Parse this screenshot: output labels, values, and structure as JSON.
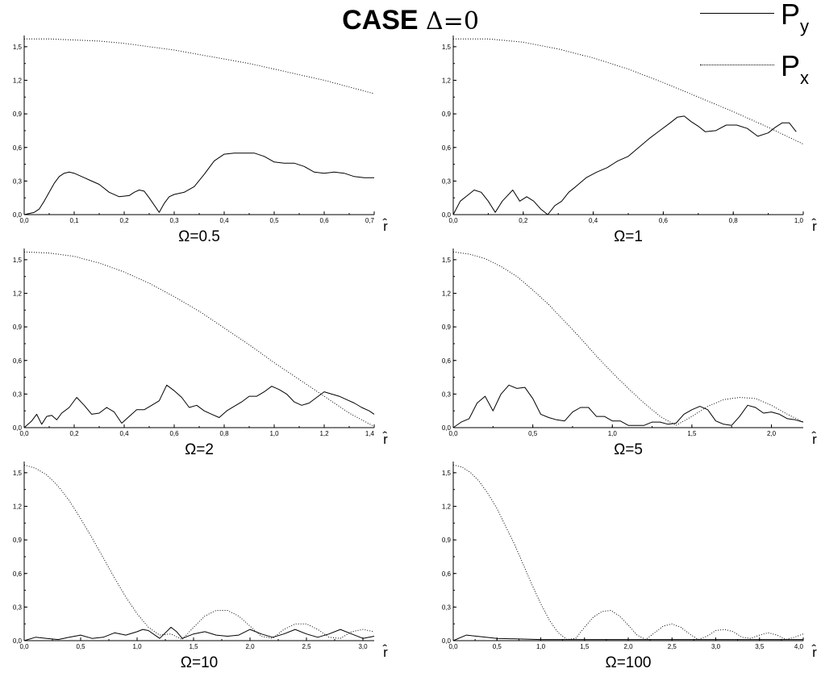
{
  "title": {
    "main": "CASE",
    "delta": "Δ=0"
  },
  "legend": [
    {
      "label": "P",
      "sub": "y",
      "style": "solid"
    },
    {
      "label": "P",
      "sub": "x",
      "style": "dotted"
    }
  ],
  "chart_data": [
    {
      "type": "line",
      "caption": "Ω=0.5",
      "xlabel": "r̂",
      "xlim": [
        0,
        0.7
      ],
      "ylim": [
        0,
        1.6
      ],
      "xticks": [
        0,
        0.1,
        0.2,
        0.3,
        0.4,
        0.5,
        0.6,
        0.7
      ],
      "xtick_labels": [
        "0,0",
        "0,1",
        "0,2",
        "0,3",
        "0,4",
        "0,5",
        "0,6",
        "0,7"
      ],
      "yticks": [
        0,
        0.3,
        0.6,
        0.9,
        1.2,
        1.5
      ],
      "ytick_labels": [
        "0,0",
        "0,3",
        "0,6",
        "0,9",
        "1,2",
        "1,5"
      ],
      "series": [
        {
          "style": "solid",
          "x": [
            0,
            0.02,
            0.03,
            0.04,
            0.05,
            0.06,
            0.07,
            0.08,
            0.09,
            0.1,
            0.11,
            0.12,
            0.13,
            0.15,
            0.17,
            0.19,
            0.21,
            0.22,
            0.23,
            0.24,
            0.25,
            0.27,
            0.28,
            0.29,
            0.3,
            0.32,
            0.34,
            0.36,
            0.38,
            0.4,
            0.42,
            0.44,
            0.46,
            0.48,
            0.5,
            0.52,
            0.54,
            0.56,
            0.58,
            0.6,
            0.62,
            0.64,
            0.66,
            0.68,
            0.7
          ],
          "y": [
            0,
            0.02,
            0.05,
            0.12,
            0.2,
            0.28,
            0.34,
            0.37,
            0.38,
            0.37,
            0.35,
            0.33,
            0.31,
            0.27,
            0.2,
            0.16,
            0.17,
            0.2,
            0.22,
            0.21,
            0.15,
            0.02,
            0.1,
            0.16,
            0.18,
            0.2,
            0.25,
            0.36,
            0.48,
            0.54,
            0.55,
            0.55,
            0.55,
            0.52,
            0.47,
            0.46,
            0.46,
            0.43,
            0.38,
            0.37,
            0.38,
            0.37,
            0.34,
            0.33,
            0.33
          ]
        },
        {
          "style": "dotted",
          "x": [
            0,
            0.05,
            0.1,
            0.15,
            0.2,
            0.25,
            0.3,
            0.35,
            0.4,
            0.45,
            0.5,
            0.55,
            0.6,
            0.65,
            0.7
          ],
          "y": [
            1.57,
            1.57,
            1.56,
            1.55,
            1.53,
            1.5,
            1.47,
            1.43,
            1.39,
            1.35,
            1.3,
            1.25,
            1.2,
            1.14,
            1.08
          ]
        }
      ]
    },
    {
      "type": "line",
      "caption": "Ω=1",
      "xlabel": "r̂",
      "xlim": [
        0,
        1.0
      ],
      "ylim": [
        0,
        1.6
      ],
      "xticks": [
        0,
        0.2,
        0.4,
        0.6,
        0.8,
        1.0
      ],
      "xtick_labels": [
        "0,0",
        "0,2",
        "0,4",
        "0,6",
        "0,8",
        "1,0"
      ],
      "yticks": [
        0,
        0.3,
        0.6,
        0.9,
        1.2,
        1.5
      ],
      "ytick_labels": [
        "0,0",
        "0,3",
        "0,6",
        "0,9",
        "1,2",
        "1,5"
      ],
      "series": [
        {
          "style": "solid",
          "x": [
            0,
            0.02,
            0.04,
            0.06,
            0.08,
            0.1,
            0.12,
            0.14,
            0.17,
            0.19,
            0.21,
            0.23,
            0.25,
            0.27,
            0.29,
            0.31,
            0.33,
            0.35,
            0.38,
            0.41,
            0.44,
            0.47,
            0.5,
            0.53,
            0.56,
            0.59,
            0.62,
            0.64,
            0.66,
            0.68,
            0.7,
            0.72,
            0.75,
            0.78,
            0.81,
            0.84,
            0.87,
            0.9,
            0.92,
            0.94,
            0.96,
            0.98
          ],
          "y": [
            0,
            0.12,
            0.17,
            0.22,
            0.2,
            0.12,
            0.02,
            0.12,
            0.22,
            0.12,
            0.16,
            0.12,
            0.05,
            0,
            0.08,
            0.12,
            0.2,
            0.25,
            0.33,
            0.38,
            0.42,
            0.48,
            0.52,
            0.6,
            0.68,
            0.75,
            0.82,
            0.87,
            0.88,
            0.83,
            0.79,
            0.74,
            0.75,
            0.8,
            0.8,
            0.77,
            0.7,
            0.73,
            0.78,
            0.82,
            0.82,
            0.74
          ]
        },
        {
          "style": "dotted",
          "x": [
            0,
            0.1,
            0.2,
            0.3,
            0.4,
            0.5,
            0.6,
            0.7,
            0.8,
            0.9,
            1.0
          ],
          "y": [
            1.57,
            1.57,
            1.54,
            1.48,
            1.4,
            1.3,
            1.18,
            1.05,
            0.92,
            0.78,
            0.63
          ]
        }
      ]
    },
    {
      "type": "line",
      "caption": "Ω=2",
      "xlabel": "r̂",
      "xlim": [
        0,
        1.4
      ],
      "ylim": [
        0,
        1.6
      ],
      "xticks": [
        0,
        0.2,
        0.4,
        0.6,
        0.8,
        1.0,
        1.2,
        1.4
      ],
      "xtick_labels": [
        "0,0",
        "0,2",
        "0,4",
        "0,6",
        "0,8",
        "1,0",
        "1,2",
        "1,4"
      ],
      "yticks": [
        0,
        0.3,
        0.6,
        0.9,
        1.2,
        1.5
      ],
      "ytick_labels": [
        "0,0",
        "0,3",
        "0,6",
        "0,9",
        "1,2",
        "1,5"
      ],
      "series": [
        {
          "style": "solid",
          "x": [
            0,
            0.03,
            0.05,
            0.07,
            0.09,
            0.11,
            0.13,
            0.15,
            0.18,
            0.21,
            0.24,
            0.27,
            0.3,
            0.33,
            0.36,
            0.39,
            0.42,
            0.45,
            0.48,
            0.51,
            0.54,
            0.57,
            0.6,
            0.63,
            0.66,
            0.69,
            0.72,
            0.75,
            0.78,
            0.81,
            0.84,
            0.87,
            0.9,
            0.93,
            0.96,
            0.99,
            1.02,
            1.05,
            1.08,
            1.11,
            1.14,
            1.17,
            1.2,
            1.23,
            1.26,
            1.29,
            1.32,
            1.35,
            1.38,
            1.4
          ],
          "y": [
            0,
            0.06,
            0.12,
            0.03,
            0.1,
            0.11,
            0.07,
            0.13,
            0.18,
            0.27,
            0.2,
            0.12,
            0.13,
            0.18,
            0.14,
            0.04,
            0.1,
            0.16,
            0.16,
            0.2,
            0.24,
            0.38,
            0.33,
            0.27,
            0.18,
            0.2,
            0.15,
            0.12,
            0.09,
            0.15,
            0.19,
            0.23,
            0.28,
            0.28,
            0.32,
            0.37,
            0.34,
            0.3,
            0.23,
            0.2,
            0.22,
            0.27,
            0.32,
            0.3,
            0.28,
            0.25,
            0.22,
            0.18,
            0.15,
            0.12
          ]
        },
        {
          "style": "dotted",
          "x": [
            0,
            0.1,
            0.2,
            0.3,
            0.4,
            0.5,
            0.6,
            0.7,
            0.8,
            0.9,
            1.0,
            1.1,
            1.2,
            1.3,
            1.4
          ],
          "y": [
            1.57,
            1.56,
            1.53,
            1.47,
            1.39,
            1.29,
            1.17,
            1.04,
            0.89,
            0.74,
            0.58,
            0.43,
            0.28,
            0.13,
            0.01
          ]
        }
      ]
    },
    {
      "type": "line",
      "caption": "Ω=5",
      "xlabel": "r̂",
      "xlim": [
        0,
        2.2
      ],
      "ylim": [
        0,
        1.6
      ],
      "xticks": [
        0,
        0.5,
        1.0,
        1.5,
        2.0
      ],
      "xtick_labels": [
        "0,0",
        "0,5",
        "1,0",
        "1,5",
        "2,0"
      ],
      "yticks": [
        0,
        0.3,
        0.6,
        0.9,
        1.2,
        1.5
      ],
      "ytick_labels": [
        "0,0",
        "0,3",
        "0,6",
        "0,9",
        "1,2",
        "1,5"
      ],
      "series": [
        {
          "style": "solid",
          "x": [
            0,
            0.05,
            0.1,
            0.15,
            0.2,
            0.25,
            0.3,
            0.35,
            0.4,
            0.45,
            0.5,
            0.55,
            0.6,
            0.65,
            0.7,
            0.75,
            0.8,
            0.85,
            0.9,
            0.95,
            1.0,
            1.05,
            1.1,
            1.15,
            1.2,
            1.25,
            1.3,
            1.35,
            1.4,
            1.45,
            1.5,
            1.55,
            1.6,
            1.65,
            1.7,
            1.75,
            1.8,
            1.85,
            1.9,
            1.95,
            2.0,
            2.05,
            2.1,
            2.15,
            2.2
          ],
          "y": [
            0,
            0.05,
            0.08,
            0.22,
            0.28,
            0.15,
            0.3,
            0.38,
            0.35,
            0.36,
            0.26,
            0.12,
            0.09,
            0.07,
            0.06,
            0.14,
            0.18,
            0.18,
            0.1,
            0.1,
            0.06,
            0.06,
            0.02,
            0.02,
            0.02,
            0.05,
            0.05,
            0.03,
            0.04,
            0.12,
            0.16,
            0.19,
            0.16,
            0.06,
            0.03,
            0.02,
            0.1,
            0.2,
            0.18,
            0.13,
            0.14,
            0.12,
            0.08,
            0.07,
            0.05
          ]
        },
        {
          "style": "dotted",
          "x": [
            0,
            0.1,
            0.2,
            0.3,
            0.4,
            0.5,
            0.6,
            0.7,
            0.8,
            0.9,
            1.0,
            1.1,
            1.2,
            1.3,
            1.4,
            1.5,
            1.6,
            1.7,
            1.8,
            1.9,
            2.0,
            2.1,
            2.2
          ],
          "y": [
            1.57,
            1.55,
            1.51,
            1.44,
            1.35,
            1.23,
            1.1,
            0.95,
            0.8,
            0.64,
            0.49,
            0.35,
            0.22,
            0.1,
            0.02,
            0.1,
            0.19,
            0.25,
            0.27,
            0.26,
            0.2,
            0.12,
            0.05
          ]
        }
      ]
    },
    {
      "type": "line",
      "caption": "Ω=10",
      "xlabel": "r̂",
      "xlim": [
        0,
        3.1
      ],
      "ylim": [
        0,
        1.6
      ],
      "xticks": [
        0,
        0.5,
        1.0,
        1.5,
        2.0,
        2.5,
        3.0
      ],
      "xtick_labels": [
        "0,0",
        "0,5",
        "1,0",
        "1,5",
        "2,0",
        "2,5",
        "3,0"
      ],
      "yticks": [
        0,
        0.3,
        0.6,
        0.9,
        1.2,
        1.5
      ],
      "ytick_labels": [
        "0,0",
        "0,3",
        "0,6",
        "0,9",
        "1,2",
        "1,5"
      ],
      "series": [
        {
          "style": "solid",
          "x": [
            0,
            0.1,
            0.2,
            0.3,
            0.4,
            0.5,
            0.6,
            0.7,
            0.8,
            0.9,
            1.0,
            1.05,
            1.1,
            1.2,
            1.25,
            1.3,
            1.35,
            1.4,
            1.5,
            1.6,
            1.7,
            1.8,
            1.9,
            2.0,
            2.1,
            2.2,
            2.3,
            2.4,
            2.5,
            2.6,
            2.7,
            2.8,
            2.9,
            3.0,
            3.1
          ],
          "y": [
            0,
            0.03,
            0.02,
            0.01,
            0.03,
            0.05,
            0.02,
            0.03,
            0.07,
            0.05,
            0.08,
            0.1,
            0.09,
            0.02,
            0.07,
            0.12,
            0.08,
            0.02,
            0.06,
            0.08,
            0.05,
            0.04,
            0.05,
            0.1,
            0.06,
            0.03,
            0.06,
            0.1,
            0.06,
            0.03,
            0.06,
            0.1,
            0.06,
            0.02,
            0.04
          ]
        },
        {
          "style": "dotted",
          "x": [
            0,
            0.1,
            0.2,
            0.3,
            0.4,
            0.5,
            0.6,
            0.7,
            0.8,
            0.9,
            1.0,
            1.1,
            1.2,
            1.3,
            1.4,
            1.5,
            1.6,
            1.7,
            1.8,
            1.9,
            2.0,
            2.1,
            2.2,
            2.3,
            2.4,
            2.5,
            2.6,
            2.7,
            2.8,
            2.9,
            3.0,
            3.1
          ],
          "y": [
            1.57,
            1.54,
            1.48,
            1.38,
            1.25,
            1.09,
            0.92,
            0.74,
            0.56,
            0.39,
            0.24,
            0.12,
            0.05,
            0.06,
            0.01,
            0.12,
            0.22,
            0.27,
            0.27,
            0.22,
            0.13,
            0.04,
            0.02,
            0.1,
            0.15,
            0.15,
            0.1,
            0.03,
            0.02,
            0.08,
            0.1,
            0.08
          ]
        }
      ]
    },
    {
      "type": "line",
      "caption": "Ω=100",
      "xlabel": "r̂",
      "xlim": [
        0,
        4.0
      ],
      "ylim": [
        0,
        1.6
      ],
      "xticks": [
        0,
        0.5,
        1.0,
        1.5,
        2.0,
        2.5,
        3.0,
        3.5,
        4.0
      ],
      "xtick_labels": [
        "0,0",
        "0,5",
        "1,0",
        "1,5",
        "2,0",
        "2,5",
        "3,0",
        "3,5",
        "4,0"
      ],
      "yticks": [
        0,
        0.3,
        0.6,
        0.9,
        1.2,
        1.5
      ],
      "ytick_labels": [
        "0,0",
        "0,3",
        "0,6",
        "0,9",
        "1,2",
        "1,5"
      ],
      "series": [
        {
          "style": "solid",
          "x": [
            0,
            0.15,
            0.5,
            1.0,
            1.5,
            2.0,
            2.5,
            3.0,
            3.5,
            4.0
          ],
          "y": [
            0,
            0.05,
            0.02,
            0.01,
            0.01,
            0.01,
            0.01,
            0.01,
            0.01,
            0.01
          ]
        },
        {
          "style": "dotted",
          "x": [
            0,
            0.1,
            0.2,
            0.3,
            0.4,
            0.5,
            0.6,
            0.7,
            0.8,
            0.9,
            1.0,
            1.1,
            1.2,
            1.3,
            1.4,
            1.5,
            1.6,
            1.7,
            1.8,
            1.9,
            2.0,
            2.1,
            2.2,
            2.3,
            2.4,
            2.5,
            2.6,
            2.7,
            2.8,
            2.9,
            3.0,
            3.1,
            3.2,
            3.3,
            3.4,
            3.5,
            3.6,
            3.7,
            3.8,
            3.9,
            4.0
          ],
          "y": [
            1.57,
            1.55,
            1.5,
            1.42,
            1.31,
            1.18,
            1.02,
            0.86,
            0.68,
            0.5,
            0.33,
            0.18,
            0.07,
            0.01,
            0.02,
            0.12,
            0.21,
            0.26,
            0.27,
            0.22,
            0.14,
            0.05,
            0.01,
            0.07,
            0.13,
            0.15,
            0.12,
            0.06,
            0.01,
            0.04,
            0.09,
            0.1,
            0.08,
            0.03,
            0.02,
            0.05,
            0.07,
            0.05,
            0.01,
            0.03,
            0.06
          ]
        }
      ]
    }
  ]
}
